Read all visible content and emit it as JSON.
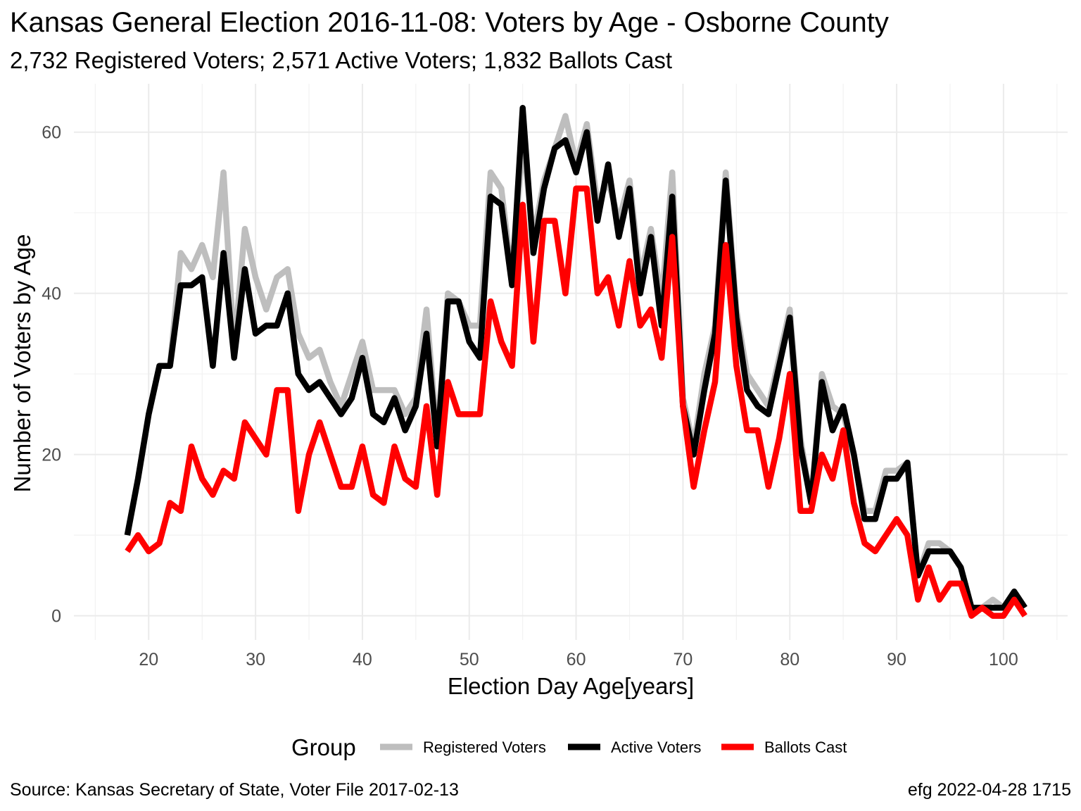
{
  "title": "Kansas General Election 2016-11-08:  Voters by Age - Osborne County",
  "subtitle": "2,732 Registered Voters; 2,571 Active Voters; 1,832 Ballots Cast",
  "caption_left": "Source:  Kansas Secretary of State, Voter File  2017-02-13",
  "caption_right": "efg 2022-04-28 1715",
  "chart_data": {
    "type": "line",
    "xlabel": "Election Day Age[years]",
    "ylabel": "Number of Voters by Age",
    "xlim": [
      13,
      106
    ],
    "ylim": [
      -3,
      66
    ],
    "x_ticks": [
      20,
      30,
      40,
      50,
      60,
      70,
      80,
      90,
      100
    ],
    "y_ticks": [
      0,
      20,
      40,
      60
    ],
    "grid": true,
    "legend": {
      "title": "Group",
      "position": "bottom"
    },
    "x": [
      18,
      19,
      20,
      21,
      22,
      23,
      24,
      25,
      26,
      27,
      28,
      29,
      30,
      31,
      32,
      33,
      34,
      35,
      36,
      37,
      38,
      39,
      40,
      41,
      42,
      43,
      44,
      45,
      46,
      47,
      48,
      49,
      50,
      51,
      52,
      53,
      54,
      55,
      56,
      57,
      58,
      59,
      60,
      61,
      62,
      63,
      64,
      65,
      66,
      67,
      68,
      69,
      70,
      71,
      72,
      73,
      74,
      75,
      76,
      77,
      78,
      79,
      80,
      81,
      82,
      83,
      84,
      85,
      86,
      87,
      88,
      89,
      90,
      91,
      92,
      93,
      94,
      95,
      96,
      97,
      98,
      99,
      100,
      101,
      102
    ],
    "series": [
      {
        "name": "Registered Voters",
        "color": "#bebebe",
        "values": [
          10,
          17,
          25,
          31,
          31,
          45,
          43,
          46,
          42,
          55,
          33,
          48,
          42,
          38,
          42,
          43,
          35,
          32,
          33,
          29,
          26,
          30,
          34,
          28,
          28,
          28,
          25,
          27,
          38,
          22,
          40,
          39,
          36,
          36,
          55,
          53,
          42,
          59,
          47,
          54,
          58,
          62,
          56,
          61,
          51,
          54,
          49,
          54,
          42,
          48,
          39,
          55,
          27,
          21,
          30,
          36,
          55,
          38,
          30,
          28,
          26,
          32,
          38,
          22,
          14,
          30,
          26,
          25,
          20,
          13,
          13,
          18,
          18,
          19,
          5,
          9,
          9,
          8,
          6,
          1,
          1,
          2,
          1,
          3,
          1
        ]
      },
      {
        "name": "Active Voters",
        "color": "#000000",
        "values": [
          10,
          17,
          25,
          31,
          31,
          41,
          41,
          42,
          31,
          45,
          32,
          43,
          35,
          36,
          36,
          40,
          30,
          28,
          29,
          27,
          25,
          27,
          32,
          25,
          24,
          27,
          23,
          26,
          35,
          21,
          39,
          39,
          34,
          32,
          52,
          51,
          41,
          63,
          45,
          53,
          58,
          59,
          55,
          60,
          49,
          56,
          47,
          53,
          40,
          47,
          36,
          52,
          26,
          20,
          28,
          35,
          54,
          37,
          28,
          26,
          25,
          31,
          37,
          21,
          14,
          29,
          23,
          26,
          20,
          12,
          12,
          17,
          17,
          19,
          5,
          8,
          8,
          8,
          6,
          1,
          1,
          1,
          1,
          3,
          1
        ]
      },
      {
        "name": "Ballots Cast",
        "color": "#ff0000",
        "values": [
          8,
          10,
          8,
          9,
          14,
          13,
          21,
          17,
          15,
          18,
          17,
          24,
          22,
          20,
          28,
          28,
          13,
          20,
          24,
          20,
          16,
          16,
          21,
          15,
          14,
          21,
          17,
          16,
          26,
          15,
          29,
          25,
          25,
          25,
          39,
          34,
          31,
          51,
          34,
          49,
          49,
          40,
          53,
          53,
          40,
          42,
          36,
          44,
          36,
          38,
          32,
          47,
          26,
          16,
          23,
          29,
          46,
          31,
          23,
          23,
          16,
          22,
          30,
          13,
          13,
          20,
          17,
          23,
          14,
          9,
          8,
          10,
          12,
          10,
          2,
          6,
          2,
          4,
          4,
          0,
          1,
          0,
          0,
          2,
          0
        ]
      }
    ]
  }
}
